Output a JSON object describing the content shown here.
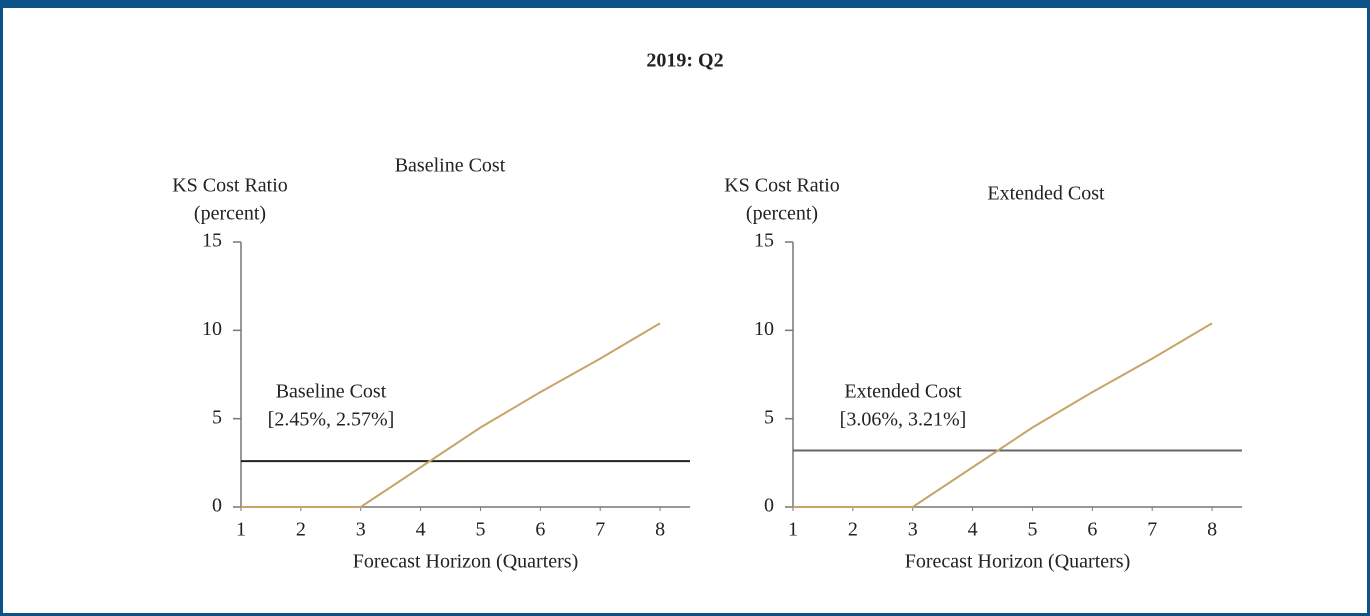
{
  "title": "2019: Q2",
  "chart_data": [
    {
      "type": "line",
      "subtitle": "Baseline Cost",
      "y_label": [
        "KS Cost Ratio",
        "(percent)"
      ],
      "x_label": "Forecast Horizon (Quarters)",
      "annotation": [
        "Baseline Cost",
        "[2.45%, 2.57%]"
      ],
      "x": [
        1,
        2,
        3,
        4,
        5,
        6,
        7,
        8
      ],
      "series": [
        {
          "color": "#c9a468",
          "values": [
            0,
            0,
            0,
            2.25,
            4.5,
            6.5,
            8.4,
            10.4
          ]
        }
      ],
      "reference_line": {
        "value": 2.6,
        "color": "#222222"
      },
      "xlim": [
        1,
        8.5
      ],
      "xticks": [
        1,
        2,
        3,
        4,
        5,
        6,
        7,
        8
      ],
      "ylim": [
        0,
        15
      ],
      "yticks": [
        0,
        5,
        10,
        15
      ]
    },
    {
      "type": "line",
      "subtitle": "Extended Cost",
      "y_label": [
        "KS Cost Ratio",
        "(percent)"
      ],
      "x_label": "Forecast Horizon (Quarters)",
      "annotation": [
        "Extended Cost",
        "[3.06%, 3.21%]"
      ],
      "x": [
        1,
        2,
        3,
        4,
        5,
        6,
        7,
        8
      ],
      "series": [
        {
          "color": "#c9a468",
          "values": [
            0,
            0,
            0,
            2.25,
            4.5,
            6.5,
            8.4,
            10.4
          ]
        }
      ],
      "reference_line": {
        "value": 3.2,
        "color": "#666666"
      },
      "xlim": [
        1,
        8.5
      ],
      "xticks": [
        1,
        2,
        3,
        4,
        5,
        6,
        7,
        8
      ],
      "ylim": [
        0,
        15
      ],
      "yticks": [
        0,
        5,
        10,
        15
      ]
    }
  ]
}
